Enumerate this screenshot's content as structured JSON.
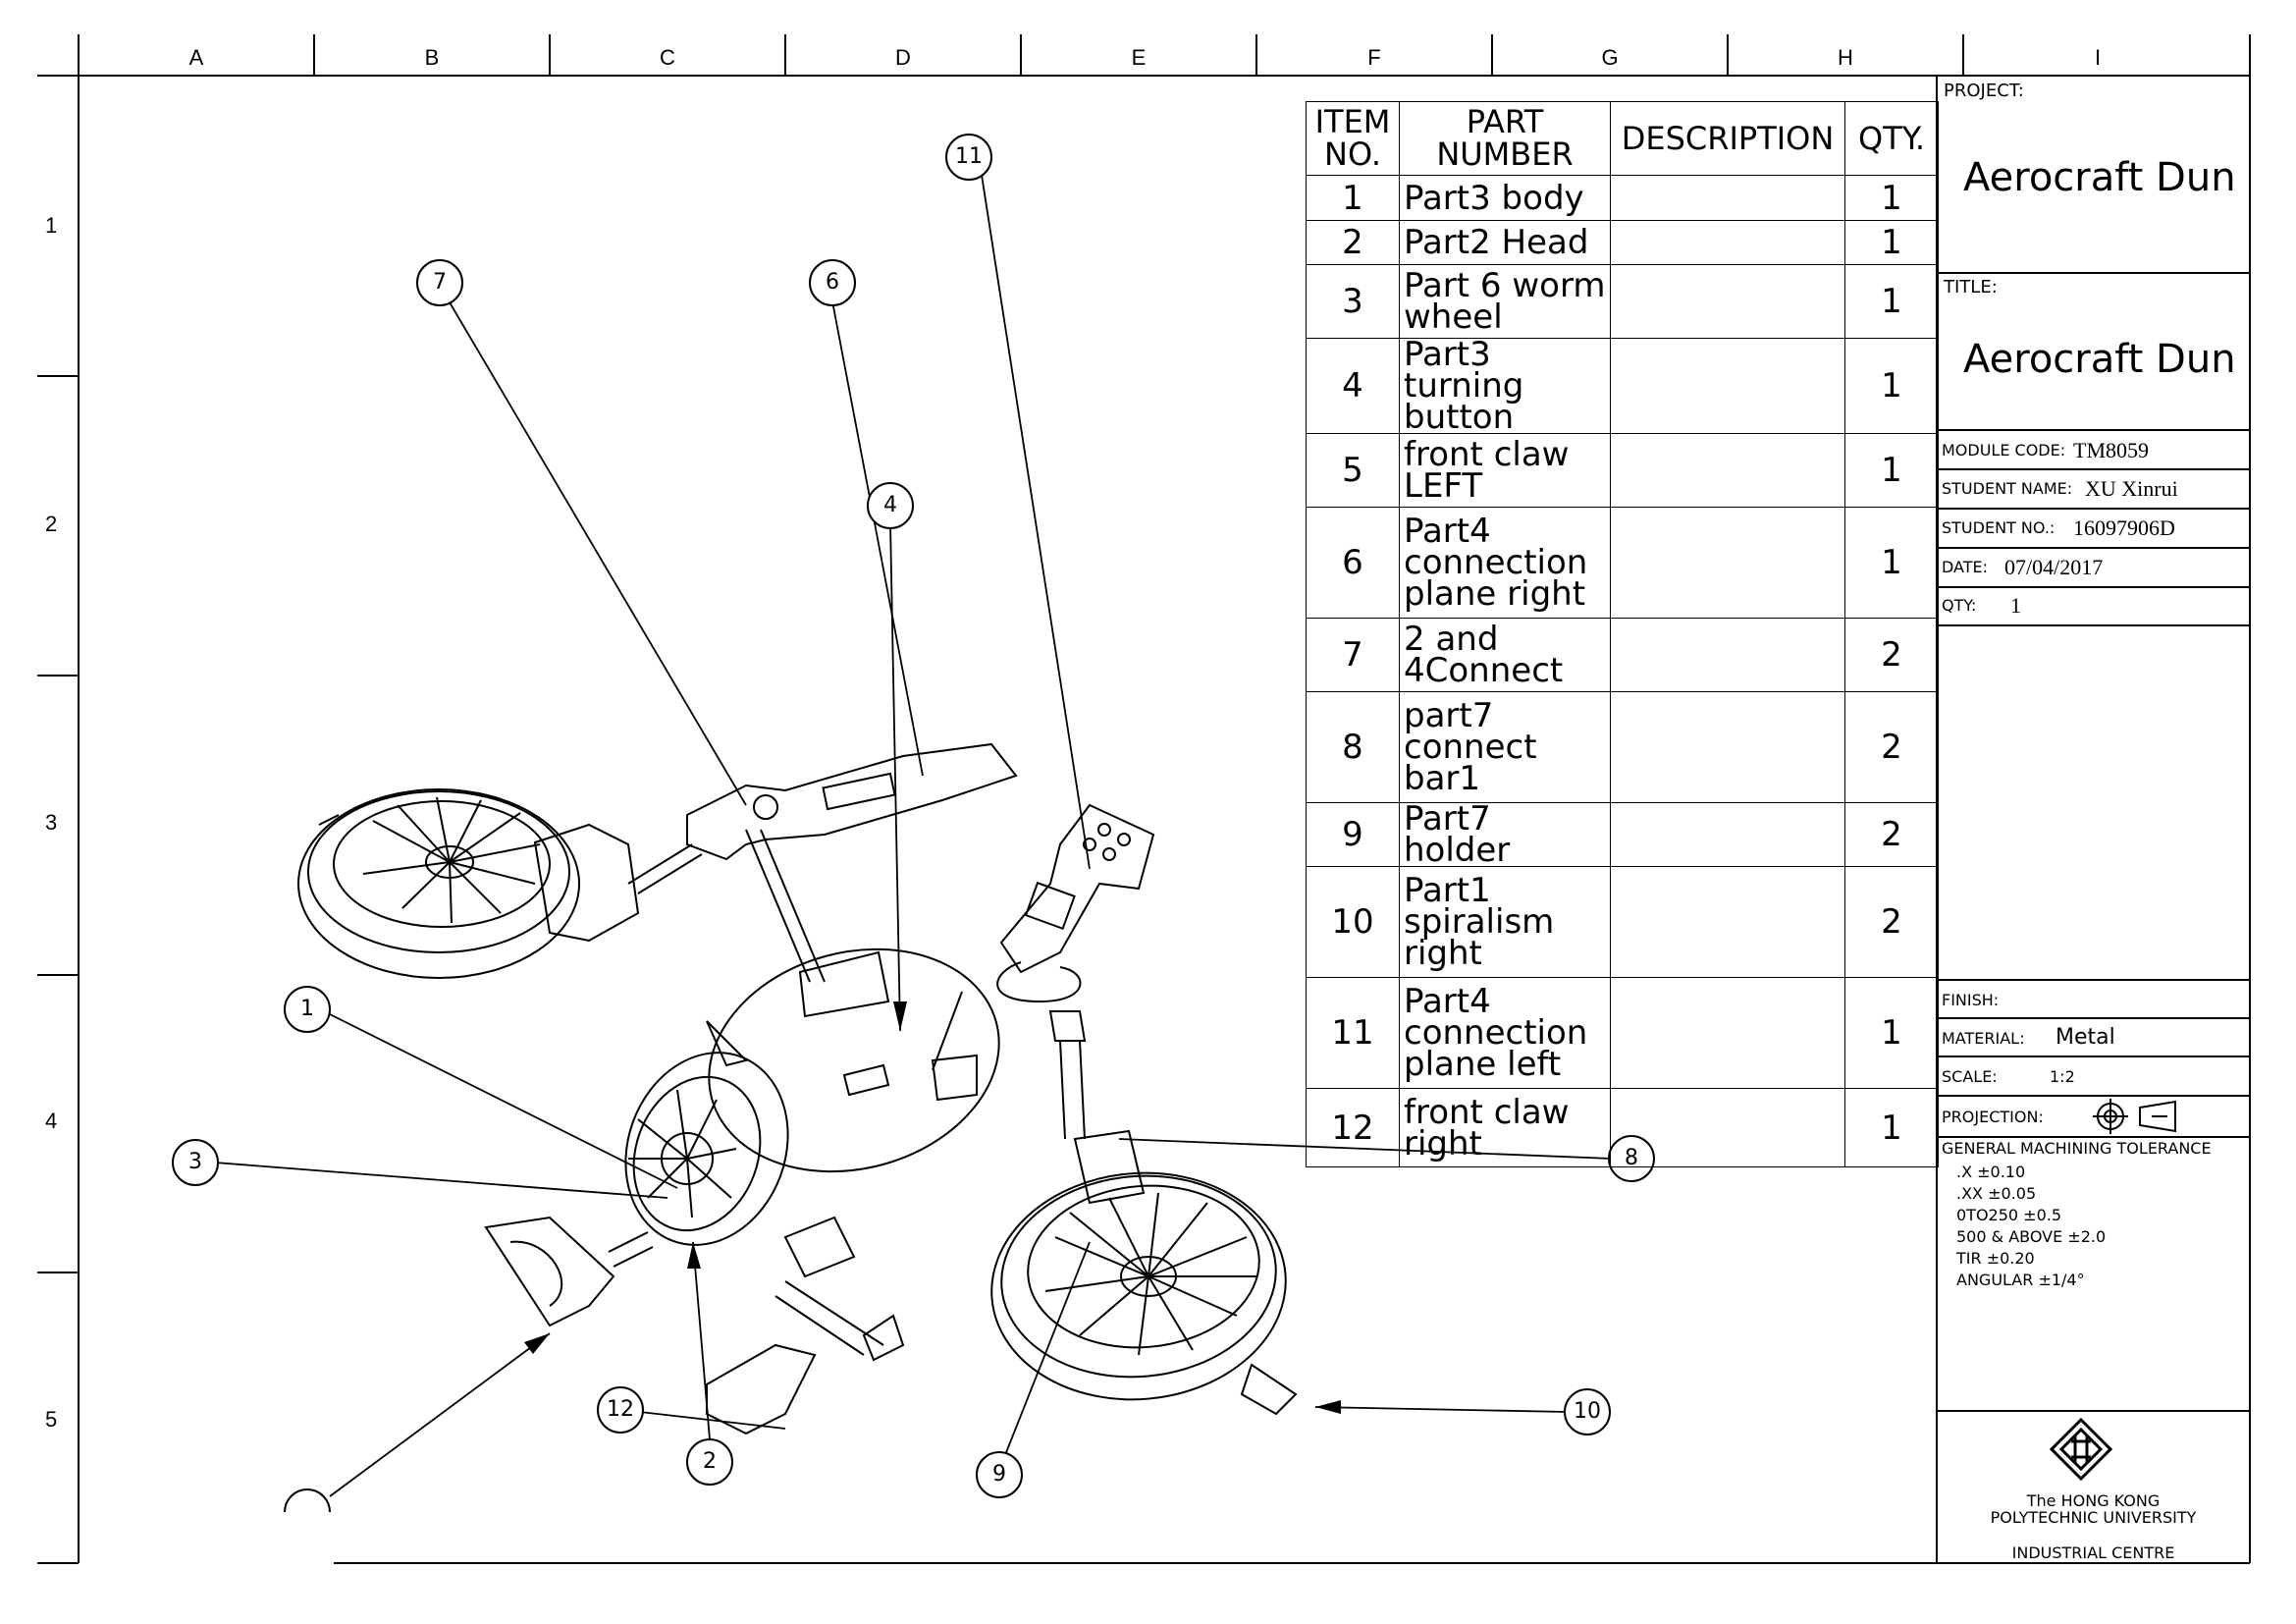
{
  "zones": {
    "columns": [
      "A",
      "B",
      "C",
      "D",
      "E",
      "F",
      "G",
      "H",
      "I"
    ],
    "rows": [
      "1",
      "2",
      "3",
      "4",
      "5"
    ]
  },
  "bom": {
    "headers": [
      "ITEM NO.",
      "PART NUMBER",
      "DESCRIPTION",
      "QTY."
    ],
    "rows": [
      {
        "item": "1",
        "part": "Part3 body",
        "description": "",
        "qty": "1"
      },
      {
        "item": "2",
        "part": "Part2 Head",
        "description": "",
        "qty": "1"
      },
      {
        "item": "3",
        "part": "Part 6 worm wheel",
        "description": "",
        "qty": "1"
      },
      {
        "item": "4",
        "part": "Part3 turning button",
        "description": "",
        "qty": "1"
      },
      {
        "item": "5",
        "part": "front claw LEFT",
        "description": "",
        "qty": "1"
      },
      {
        "item": "6",
        "part": "Part4 connection plane right",
        "description": "",
        "qty": "1"
      },
      {
        "item": "7",
        "part": "2 and 4Connect",
        "description": "",
        "qty": "2"
      },
      {
        "item": "8",
        "part": "part7 connect bar1",
        "description": "",
        "qty": "2"
      },
      {
        "item": "9",
        "part": "Part7 holder",
        "description": "",
        "qty": "2"
      },
      {
        "item": "10",
        "part": "Part1 spiralism right",
        "description": "",
        "qty": "2"
      },
      {
        "item": "11",
        "part": "Part4 connection plane left",
        "description": "",
        "qty": "1"
      },
      {
        "item": "12",
        "part": "front claw right",
        "description": "",
        "qty": "1"
      }
    ]
  },
  "title_block": {
    "project_label": "PROJECT:",
    "project": "Aerocraft Dun",
    "title_label": "TITLE:",
    "title": "Aerocraft Dun",
    "module_code_label": "MODULE CODE:",
    "module_code": "TM8059",
    "student_name_label": "STUDENT NAME:",
    "student_name": "XU Xinrui",
    "student_no_label": "STUDENT NO.:",
    "student_no": "16097906D",
    "date_label": "DATE:",
    "date": "07/04/2017",
    "qty_label": "QTY:",
    "qty": "1",
    "finish_label": "FINISH:",
    "finish": "",
    "material_label": "MATERIAL:",
    "material": "Metal",
    "scale_label": "SCALE:",
    "scale": "1:2",
    "projection_label": "PROJECTION:",
    "tolerance_title": "GENERAL MACHINING TOLERANCE",
    "tolerance_lines": [
      ".X  ±0.10",
      ".XX  ±0.05",
      "0TO250 ±0.5",
      "500 & ABOVE ±2.0",
      "TIR  ±0.20",
      "ANGULAR ±1/4°"
    ],
    "university_line1": "The HONG KONG",
    "university_line2": "POLYTECHNIC UNIVERSITY",
    "centre": "INDUSTRIAL CENTRE"
  },
  "balloons": [
    "1",
    "2",
    "3",
    "4",
    "6",
    "7",
    "8",
    "9",
    "10",
    "11",
    "12"
  ]
}
